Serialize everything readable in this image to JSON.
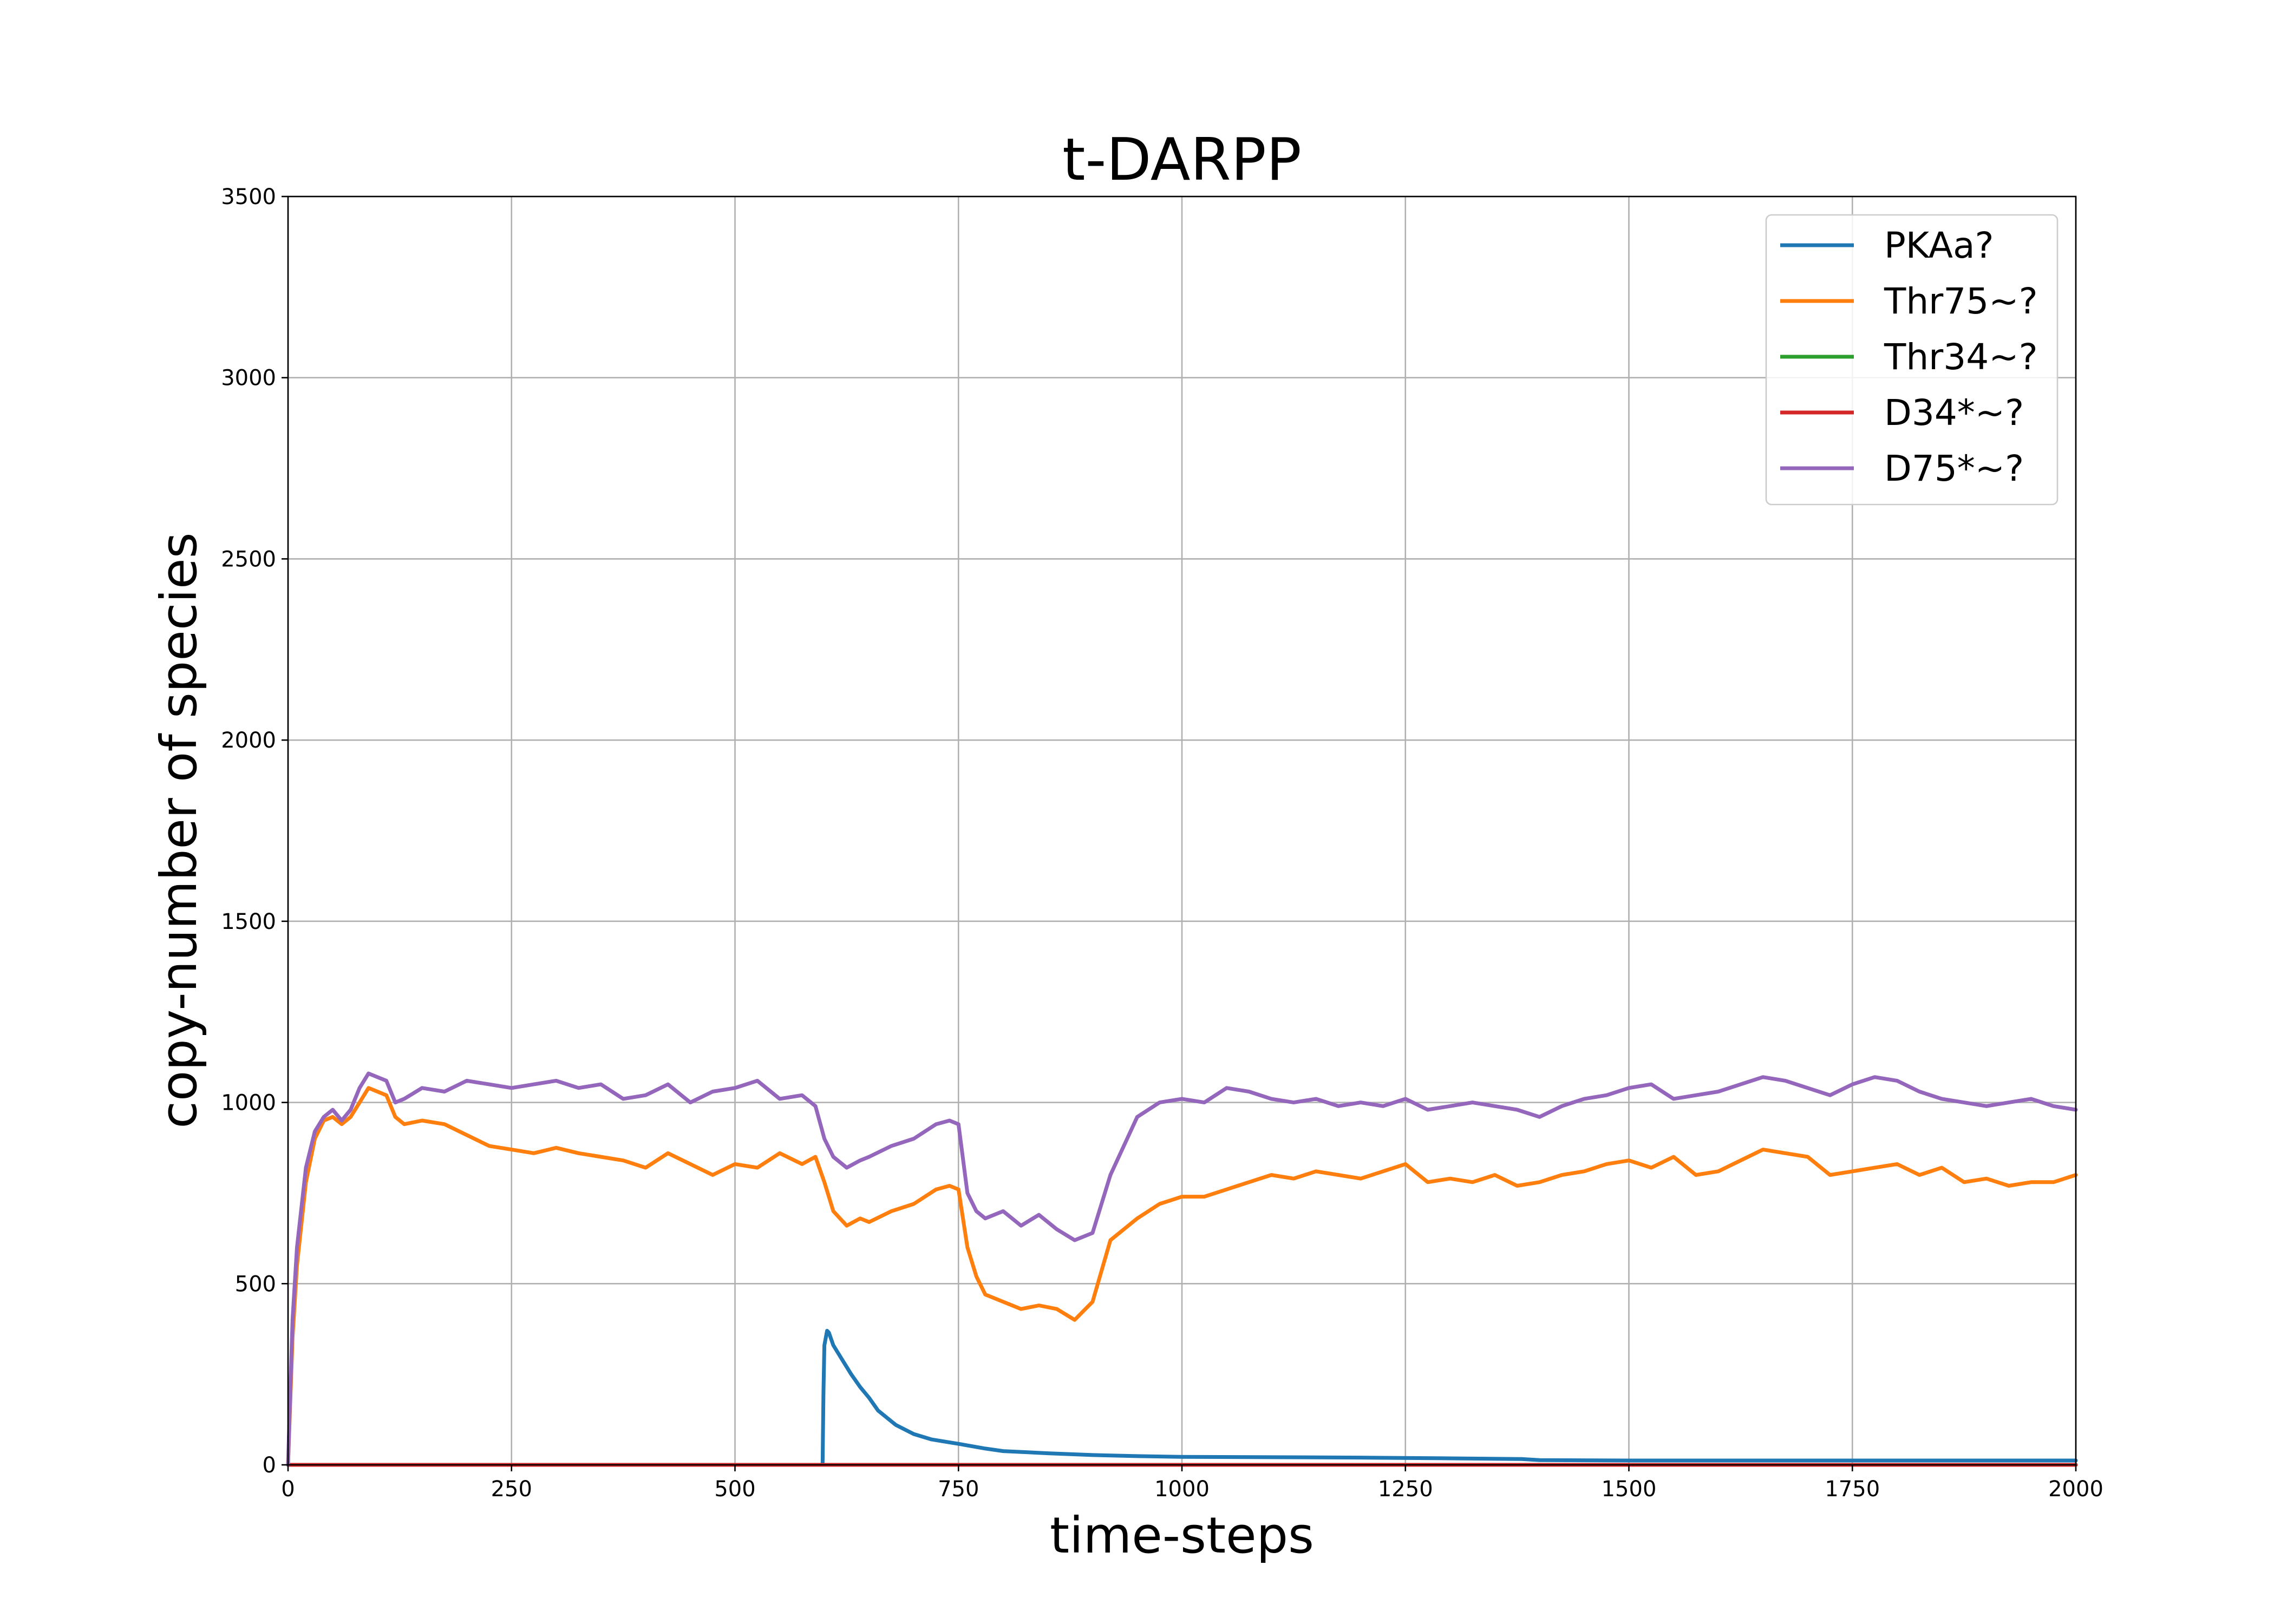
{
  "chart_data": {
    "type": "line",
    "title": "t-DARPP",
    "xlabel": "time-steps",
    "ylabel": "copy-number of species",
    "xlim": [
      0,
      2000
    ],
    "ylim": [
      0,
      3500
    ],
    "xticks": [
      0,
      250,
      500,
      750,
      1000,
      1250,
      1500,
      1750,
      2000
    ],
    "yticks": [
      0,
      500,
      1000,
      1500,
      2000,
      2500,
      3000,
      3500
    ],
    "grid": true,
    "legend_position": "top-right",
    "series": [
      {
        "name": "PKAa?",
        "color": "#1f77b4",
        "x": [
          0,
          598,
          599,
          600,
          603,
          605,
          610,
          620,
          630,
          640,
          650,
          660,
          680,
          700,
          720,
          750,
          780,
          800,
          850,
          900,
          950,
          1000,
          1100,
          1200,
          1300,
          1380,
          1400,
          1500,
          1600,
          1700,
          1800,
          1900,
          2000
        ],
        "values": [
          0,
          0,
          200,
          330,
          370,
          365,
          330,
          290,
          250,
          215,
          185,
          150,
          110,
          85,
          70,
          58,
          45,
          38,
          32,
          27,
          24,
          22,
          21,
          20,
          18,
          16,
          13,
          12,
          12,
          12,
          12,
          12,
          12
        ]
      },
      {
        "name": "Thr75~?",
        "color": "#ff7f0e",
        "x": [
          0,
          5,
          10,
          20,
          30,
          40,
          50,
          60,
          70,
          80,
          90,
          100,
          110,
          120,
          130,
          150,
          175,
          200,
          225,
          250,
          275,
          300,
          325,
          350,
          375,
          400,
          425,
          450,
          475,
          500,
          525,
          550,
          575,
          590,
          600,
          610,
          625,
          640,
          650,
          675,
          700,
          725,
          740,
          750,
          760,
          770,
          780,
          800,
          820,
          840,
          860,
          880,
          900,
          920,
          950,
          975,
          1000,
          1025,
          1050,
          1075,
          1100,
          1125,
          1150,
          1175,
          1200,
          1225,
          1250,
          1275,
          1300,
          1325,
          1350,
          1375,
          1400,
          1425,
          1450,
          1475,
          1500,
          1525,
          1550,
          1575,
          1600,
          1625,
          1650,
          1675,
          1700,
          1725,
          1750,
          1775,
          1800,
          1825,
          1850,
          1875,
          1900,
          1925,
          1950,
          1975,
          2000
        ],
        "values": [
          0,
          350,
          550,
          780,
          900,
          950,
          960,
          940,
          960,
          1000,
          1040,
          1030,
          1020,
          960,
          940,
          950,
          940,
          910,
          880,
          870,
          860,
          875,
          860,
          850,
          840,
          820,
          860,
          830,
          800,
          830,
          820,
          860,
          830,
          850,
          780,
          700,
          660,
          680,
          670,
          700,
          720,
          760,
          770,
          760,
          600,
          520,
          470,
          450,
          430,
          440,
          430,
          400,
          450,
          620,
          680,
          720,
          740,
          740,
          760,
          780,
          800,
          790,
          810,
          800,
          790,
          810,
          830,
          780,
          790,
          780,
          800,
          770,
          780,
          800,
          810,
          830,
          840,
          820,
          850,
          800,
          810,
          840,
          870,
          860,
          850,
          800,
          810,
          820,
          830,
          800,
          820,
          780,
          790,
          770,
          780,
          780,
          800
        ]
      },
      {
        "name": "Thr34~?",
        "color": "#2ca02c",
        "x": [
          0,
          2000
        ],
        "values": [
          0,
          0
        ]
      },
      {
        "name": "D34*~?",
        "color": "#d62728",
        "x": [
          0,
          2000
        ],
        "values": [
          0,
          0
        ]
      },
      {
        "name": "D75*~?",
        "color": "#9467bd",
        "x": [
          0,
          5,
          10,
          20,
          30,
          40,
          50,
          60,
          70,
          80,
          90,
          100,
          110,
          120,
          130,
          150,
          175,
          200,
          225,
          250,
          275,
          300,
          325,
          350,
          375,
          400,
          425,
          450,
          475,
          500,
          525,
          550,
          575,
          590,
          600,
          610,
          625,
          640,
          650,
          675,
          700,
          725,
          740,
          750,
          760,
          770,
          780,
          800,
          820,
          840,
          860,
          880,
          900,
          920,
          950,
          975,
          1000,
          1025,
          1050,
          1075,
          1100,
          1125,
          1150,
          1175,
          1200,
          1225,
          1250,
          1275,
          1300,
          1325,
          1350,
          1375,
          1400,
          1425,
          1450,
          1475,
          1500,
          1525,
          1550,
          1575,
          1600,
          1625,
          1650,
          1675,
          1700,
          1725,
          1750,
          1775,
          1800,
          1825,
          1850,
          1875,
          1900,
          1925,
          1950,
          1975,
          2000
        ],
        "values": [
          0,
          400,
          600,
          820,
          920,
          960,
          980,
          950,
          980,
          1040,
          1080,
          1070,
          1060,
          1000,
          1010,
          1040,
          1030,
          1060,
          1050,
          1040,
          1050,
          1060,
          1040,
          1050,
          1010,
          1020,
          1050,
          1000,
          1030,
          1040,
          1060,
          1010,
          1020,
          990,
          900,
          850,
          820,
          840,
          850,
          880,
          900,
          940,
          950,
          940,
          750,
          700,
          680,
          700,
          660,
          690,
          650,
          620,
          640,
          800,
          960,
          1000,
          1010,
          1000,
          1040,
          1030,
          1010,
          1000,
          1010,
          990,
          1000,
          990,
          1010,
          980,
          990,
          1000,
          990,
          980,
          960,
          990,
          1010,
          1020,
          1040,
          1050,
          1010,
          1020,
          1030,
          1050,
          1070,
          1060,
          1040,
          1020,
          1050,
          1070,
          1060,
          1030,
          1010,
          1000,
          990,
          1000,
          1010,
          990,
          980
        ]
      }
    ]
  }
}
